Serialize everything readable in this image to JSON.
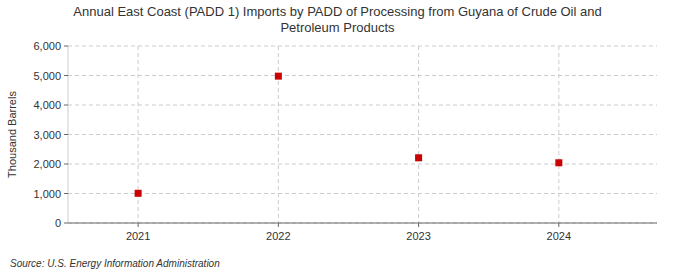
{
  "chart_data": {
    "type": "scatter",
    "title": "Annual East Coast (PADD 1) Imports by PADD of Processing from Guyana of Crude Oil and\nPetroleum Products",
    "y_label": "Thousand Barrels",
    "source": "Source: U.S. Energy Information Administration",
    "x": [
      2021,
      2022,
      2023,
      2024
    ],
    "values": [
      1007,
      4978,
      2211,
      2042
    ],
    "color": "#cc0000",
    "marker": "square",
    "xlim": [
      2020.5,
      2024.7
    ],
    "xticks": [
      2021,
      2022,
      2023,
      2024
    ],
    "ylim": [
      0,
      6000
    ],
    "yticks": [
      0,
      {
        "value": 1000,
        "label": "1,000"
      },
      {
        "value": 2000,
        "label": "2,000"
      },
      {
        "value": 3000,
        "label": "3,000"
      },
      {
        "value": 4000,
        "label": "4,000"
      },
      {
        "value": 5000,
        "label": "5,000"
      },
      {
        "value": 6000,
        "label": "6,000"
      }
    ],
    "grid": true
  }
}
